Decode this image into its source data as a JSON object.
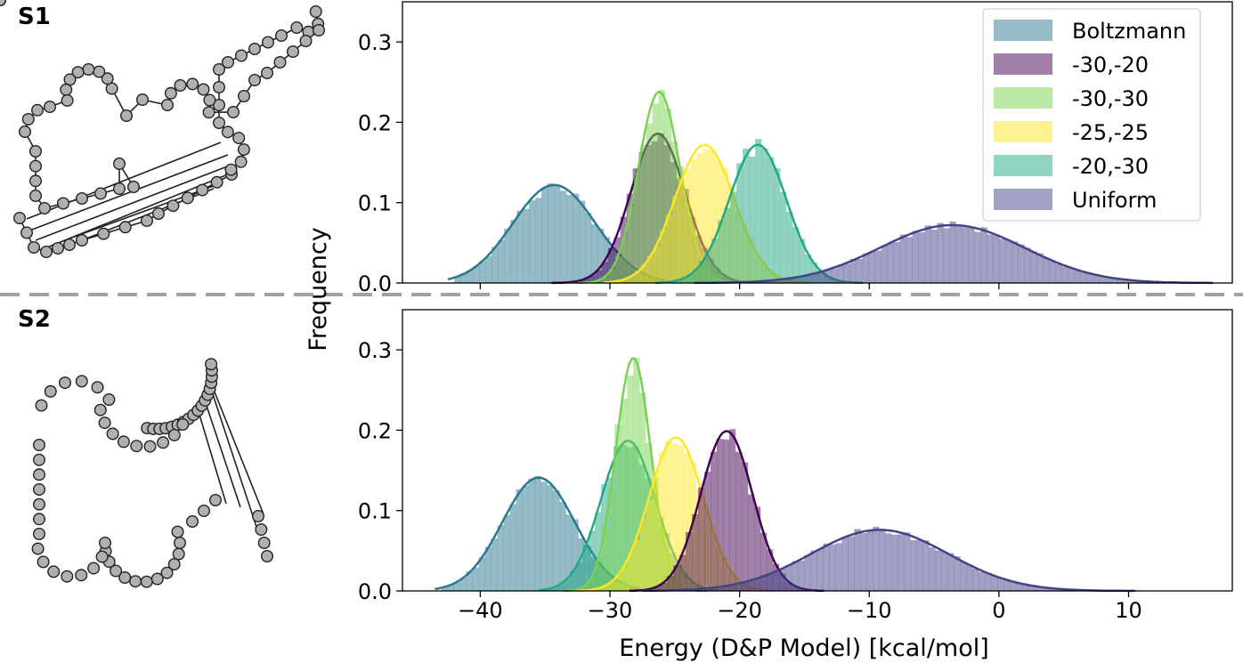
{
  "panels": {
    "top_label": "S1",
    "bottom_label": "S2"
  },
  "chart_data": [
    {
      "type": "histogram",
      "panel": "S1",
      "xlim": [
        -46,
        18
      ],
      "ylim": [
        0,
        0.35
      ],
      "yticks": [
        0.0,
        0.1,
        0.2,
        0.3
      ],
      "ytick_labels": [
        "0.0",
        "0.1",
        "0.2",
        "0.3"
      ],
      "legend_position": "top-right",
      "legend": [
        "Boltzmann",
        "-30,-20",
        "-30,-30",
        "-25,-25",
        "-20,-30",
        "Uniform"
      ],
      "series": [
        {
          "name": "Boltzmann",
          "color": "#2a788e",
          "mean": -34.3,
          "sd": 3.2,
          "peak": 0.122,
          "range": [
            -42,
            -26
          ]
        },
        {
          "name": "-30,-20",
          "color": "#440154",
          "mean": -26.3,
          "sd": 2.1,
          "peak": 0.186,
          "range": [
            -34,
            -20
          ]
        },
        {
          "name": "-30,-30",
          "color": "#7ad151",
          "mean": -26.2,
          "sd": 1.6,
          "peak": 0.238,
          "range": [
            -32,
            -21
          ]
        },
        {
          "name": "-25,-25",
          "color": "#fde725",
          "mean": -22.7,
          "sd": 2.3,
          "peak": 0.172,
          "range": [
            -30,
            -15
          ]
        },
        {
          "name": "-20,-30",
          "color": "#22a884",
          "mean": -18.6,
          "sd": 2.2,
          "peak": 0.172,
          "range": [
            -26,
            -11
          ]
        },
        {
          "name": "Uniform",
          "color": "#414487",
          "mean": -3.6,
          "sd": 5.6,
          "peak": 0.072,
          "range": [
            -23,
            16
          ]
        }
      ]
    },
    {
      "type": "histogram",
      "panel": "S2",
      "xlim": [
        -46,
        18
      ],
      "ylim": [
        0,
        0.35
      ],
      "xticks": [
        -40,
        -30,
        -20,
        -10,
        0,
        10
      ],
      "xtick_labels": [
        "−40",
        "−30",
        "−20",
        "−10",
        "0",
        "10"
      ],
      "yticks": [
        0.0,
        0.1,
        0.2,
        0.3
      ],
      "ytick_labels": [
        "0.0",
        "0.1",
        "0.2",
        "0.3"
      ],
      "xlabel": "Energy (D&P Model) [kcal/mol]",
      "ylabel": "Frequency",
      "series": [
        {
          "name": "Boltzmann",
          "color": "#2a788e",
          "mean": -35.5,
          "sd": 2.8,
          "peak": 0.141,
          "range": [
            -43,
            -28
          ]
        },
        {
          "name": "-20,-30",
          "color": "#22a884",
          "mean": -28.6,
          "sd": 2.1,
          "peak": 0.187,
          "range": [
            -35,
            -22
          ]
        },
        {
          "name": "-30,-30",
          "color": "#7ad151",
          "mean": -28.2,
          "sd": 1.35,
          "peak": 0.29,
          "range": [
            -33,
            -23
          ]
        },
        {
          "name": "-25,-25",
          "color": "#fde725",
          "mean": -24.9,
          "sd": 2.1,
          "peak": 0.191,
          "range": [
            -32,
            -18
          ]
        },
        {
          "name": "-30,-20",
          "color": "#440154",
          "mean": -21.0,
          "sd": 2.0,
          "peak": 0.199,
          "range": [
            -28,
            -14
          ]
        },
        {
          "name": "Uniform",
          "color": "#414487",
          "mean": -9.2,
          "sd": 5.3,
          "peak": 0.076,
          "range": [
            -27,
            10
          ]
        }
      ]
    }
  ]
}
